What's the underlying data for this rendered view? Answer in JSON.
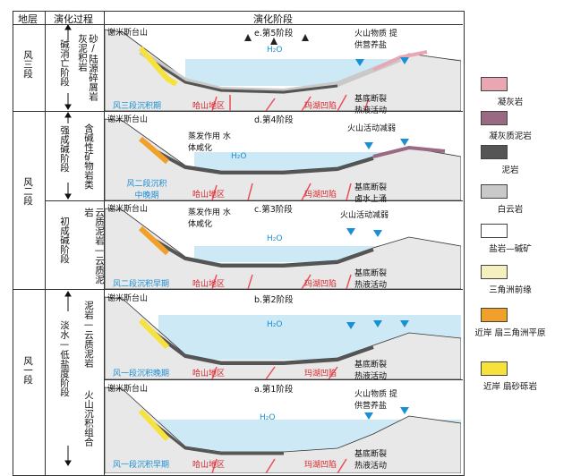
{
  "header": {
    "col1": "地层",
    "col2": "演化过程",
    "col3": "演化阶段"
  },
  "strata": [
    {
      "label": "风三段"
    },
    {
      "label": "风二段"
    },
    {
      "label": "风一段"
    }
  ],
  "process_phases": [
    {
      "label": "碱消亡阶段"
    },
    {
      "label": "强成碱阶段"
    },
    {
      "label": "初成碱阶段"
    },
    {
      "label": "淡水—低盐度阶段"
    }
  ],
  "process_lithology": [
    {
      "label": "砂/陆源碎屑岩灰泥积岩"
    },
    {
      "label": "含碱性矿物岩类"
    },
    {
      "label": "云质泥岩—云质泥岩"
    },
    {
      "label": "泥岩—云质泥岩"
    },
    {
      "label": "火山沉积组合"
    }
  ],
  "panels": [
    {
      "stage": "e.第5阶段",
      "mountain": "谢米斯台山",
      "period": "风三段沉积期",
      "area": "哈山地区",
      "sag": "玛湖凹陷",
      "fault": "基底断裂 热液活动",
      "volcano": "火山物质 提供营养盐",
      "water": "H₂O",
      "evap": ""
    },
    {
      "stage": "d.第4阶段",
      "mountain": "谢米斯台山",
      "period": "风二段沉积 中晚期",
      "area": "哈山地区",
      "sag": "玛湖凹陷",
      "fault": "基底断裂 卤水上涌",
      "volcano": "火山活动减弱",
      "water": "H₂O",
      "evap": "蒸发作用 水体咸化"
    },
    {
      "stage": "c.第3阶段",
      "mountain": "谢米斯台山",
      "period": "风二段沉积早期",
      "area": "哈山地区",
      "sag": "玛湖凹陷",
      "fault": "基底断裂 热液活动",
      "volcano": "火山活动减弱",
      "water": "H₂O",
      "evap": "蒸发作用 水体咸化"
    },
    {
      "stage": "b.第2阶段",
      "mountain": "谢米斯台山",
      "period": "风一段沉积晚期",
      "area": "哈山地区",
      "sag": "玛湖凹陷",
      "fault": "基底断裂 热液活动",
      "volcano": "",
      "water": "H₂O",
      "evap": ""
    },
    {
      "stage": "a.第1阶段",
      "mountain": "谢米斯台山",
      "period": "风一段沉积早期",
      "area": "哈山地区",
      "sag": "玛湖凹陷",
      "fault": "基底断裂 热液活动",
      "volcano": "火山物质 提供营养盐",
      "water": "H₂O",
      "evap": ""
    }
  ],
  "legend": [
    {
      "label": "凝灰岩",
      "color": "#e9a7b4"
    },
    {
      "label": "凝灰质泥岩",
      "color": "#9a6a85"
    },
    {
      "label": "泥岩",
      "color": "#555555"
    },
    {
      "label": "白云岩",
      "color": "#c9c9c9"
    },
    {
      "label": "盐岩—碱矿",
      "color": "#ffffff"
    },
    {
      "label": "三角洲前缘",
      "color": "#f6efc0"
    },
    {
      "label": "近岸 扇三角洲平原",
      "color": "#f2a02c"
    },
    {
      "label": "近岸 扇砂砾岩",
      "color": "#f6e23a"
    }
  ]
}
